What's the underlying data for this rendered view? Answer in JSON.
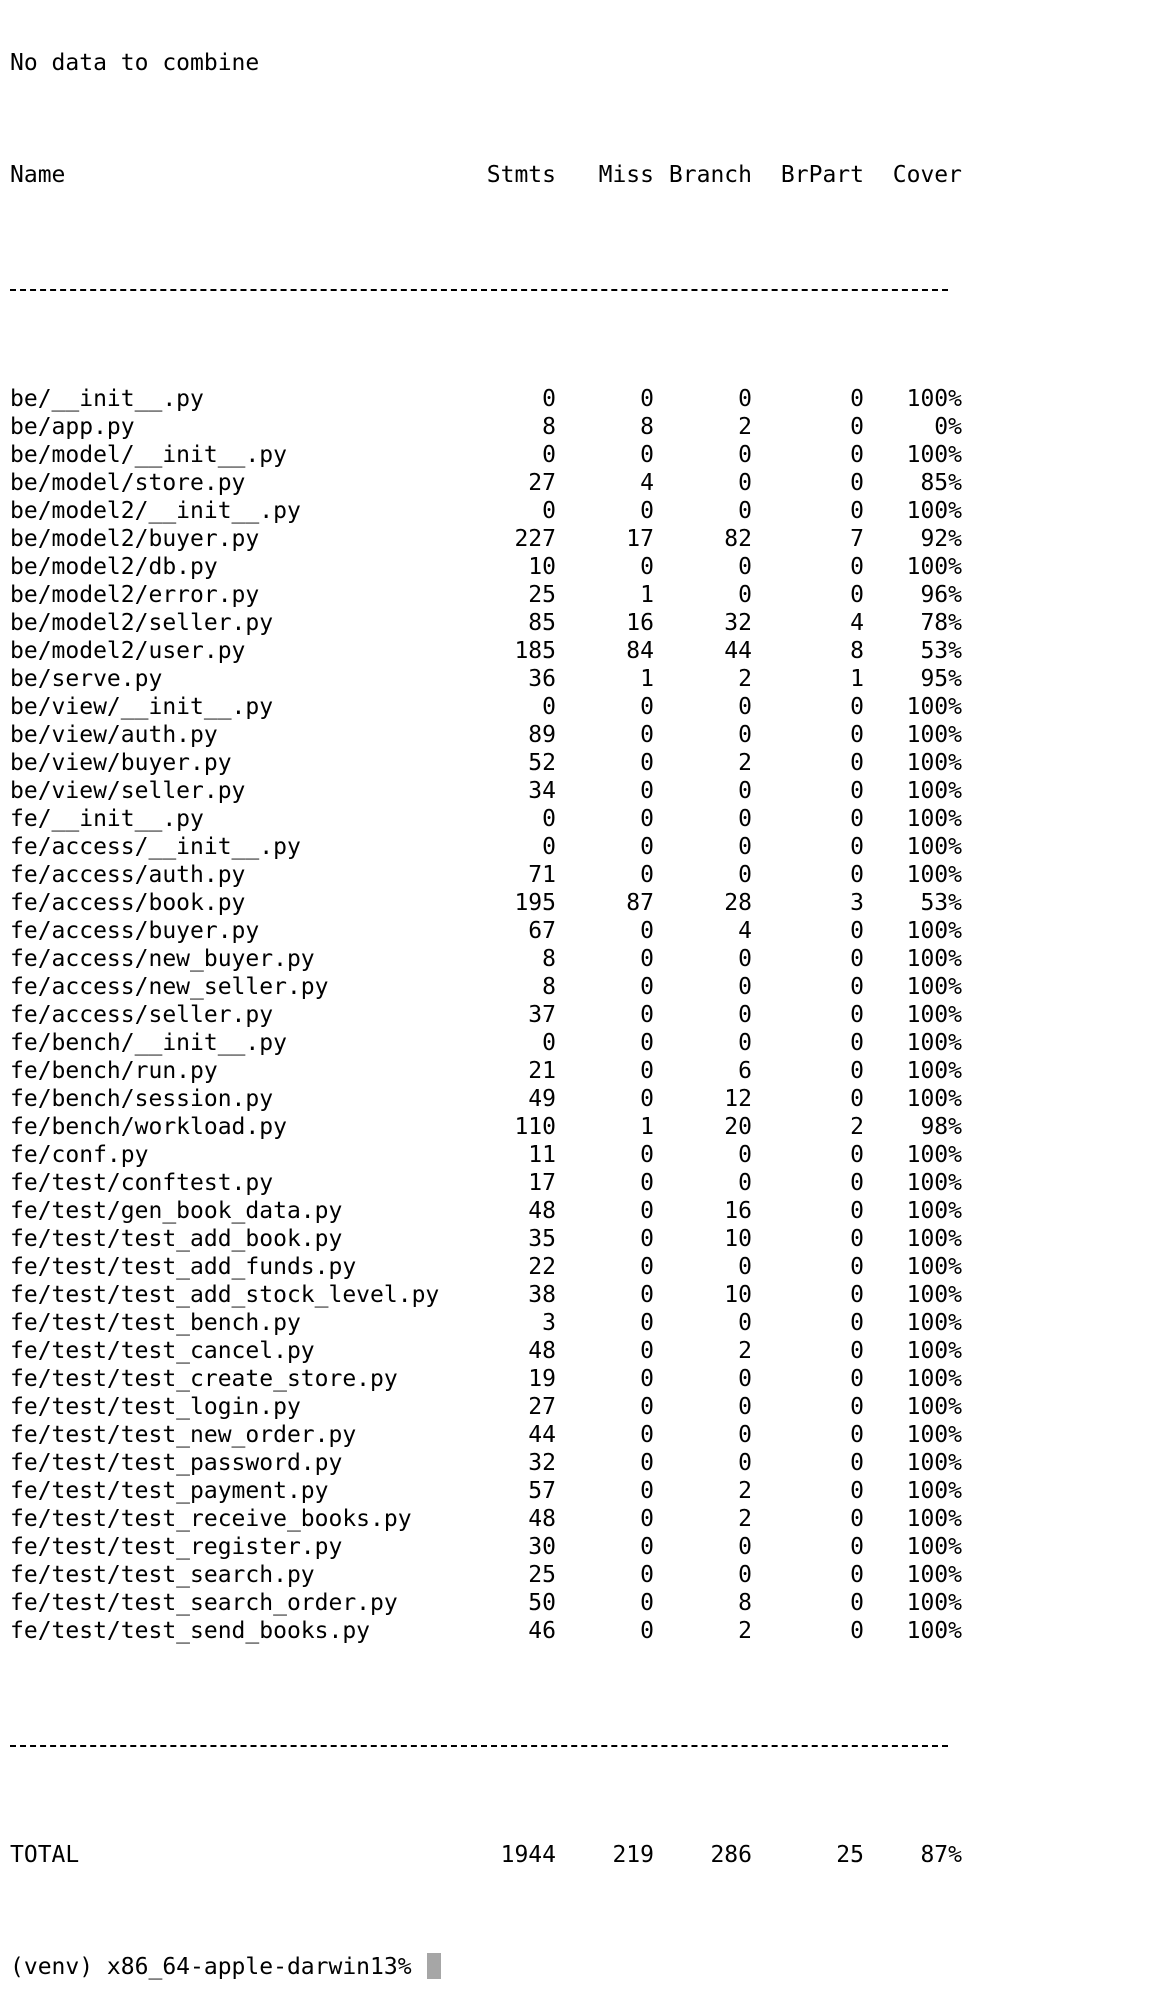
{
  "preamble": "No data to combine",
  "header": {
    "name": "Name",
    "stmts": "Stmts",
    "miss": "Miss",
    "branch": "Branch",
    "brpart": "BrPart",
    "cover": "Cover"
  },
  "rows": [
    {
      "name": "be/__init__.py",
      "stmts": "0",
      "miss": "0",
      "branch": "0",
      "brpart": "0",
      "cover": "100%"
    },
    {
      "name": "be/app.py",
      "stmts": "8",
      "miss": "8",
      "branch": "2",
      "brpart": "0",
      "cover": "0%"
    },
    {
      "name": "be/model/__init__.py",
      "stmts": "0",
      "miss": "0",
      "branch": "0",
      "brpart": "0",
      "cover": "100%"
    },
    {
      "name": "be/model/store.py",
      "stmts": "27",
      "miss": "4",
      "branch": "0",
      "brpart": "0",
      "cover": "85%"
    },
    {
      "name": "be/model2/__init__.py",
      "stmts": "0",
      "miss": "0",
      "branch": "0",
      "brpart": "0",
      "cover": "100%"
    },
    {
      "name": "be/model2/buyer.py",
      "stmts": "227",
      "miss": "17",
      "branch": "82",
      "brpart": "7",
      "cover": "92%"
    },
    {
      "name": "be/model2/db.py",
      "stmts": "10",
      "miss": "0",
      "branch": "0",
      "brpart": "0",
      "cover": "100%"
    },
    {
      "name": "be/model2/error.py",
      "stmts": "25",
      "miss": "1",
      "branch": "0",
      "brpart": "0",
      "cover": "96%"
    },
    {
      "name": "be/model2/seller.py",
      "stmts": "85",
      "miss": "16",
      "branch": "32",
      "brpart": "4",
      "cover": "78%"
    },
    {
      "name": "be/model2/user.py",
      "stmts": "185",
      "miss": "84",
      "branch": "44",
      "brpart": "8",
      "cover": "53%"
    },
    {
      "name": "be/serve.py",
      "stmts": "36",
      "miss": "1",
      "branch": "2",
      "brpart": "1",
      "cover": "95%"
    },
    {
      "name": "be/view/__init__.py",
      "stmts": "0",
      "miss": "0",
      "branch": "0",
      "brpart": "0",
      "cover": "100%"
    },
    {
      "name": "be/view/auth.py",
      "stmts": "89",
      "miss": "0",
      "branch": "0",
      "brpart": "0",
      "cover": "100%"
    },
    {
      "name": "be/view/buyer.py",
      "stmts": "52",
      "miss": "0",
      "branch": "2",
      "brpart": "0",
      "cover": "100%"
    },
    {
      "name": "be/view/seller.py",
      "stmts": "34",
      "miss": "0",
      "branch": "0",
      "brpart": "0",
      "cover": "100%"
    },
    {
      "name": "fe/__init__.py",
      "stmts": "0",
      "miss": "0",
      "branch": "0",
      "brpart": "0",
      "cover": "100%"
    },
    {
      "name": "fe/access/__init__.py",
      "stmts": "0",
      "miss": "0",
      "branch": "0",
      "brpart": "0",
      "cover": "100%"
    },
    {
      "name": "fe/access/auth.py",
      "stmts": "71",
      "miss": "0",
      "branch": "0",
      "brpart": "0",
      "cover": "100%"
    },
    {
      "name": "fe/access/book.py",
      "stmts": "195",
      "miss": "87",
      "branch": "28",
      "brpart": "3",
      "cover": "53%"
    },
    {
      "name": "fe/access/buyer.py",
      "stmts": "67",
      "miss": "0",
      "branch": "4",
      "brpart": "0",
      "cover": "100%"
    },
    {
      "name": "fe/access/new_buyer.py",
      "stmts": "8",
      "miss": "0",
      "branch": "0",
      "brpart": "0",
      "cover": "100%"
    },
    {
      "name": "fe/access/new_seller.py",
      "stmts": "8",
      "miss": "0",
      "branch": "0",
      "brpart": "0",
      "cover": "100%"
    },
    {
      "name": "fe/access/seller.py",
      "stmts": "37",
      "miss": "0",
      "branch": "0",
      "brpart": "0",
      "cover": "100%"
    },
    {
      "name": "fe/bench/__init__.py",
      "stmts": "0",
      "miss": "0",
      "branch": "0",
      "brpart": "0",
      "cover": "100%"
    },
    {
      "name": "fe/bench/run.py",
      "stmts": "21",
      "miss": "0",
      "branch": "6",
      "brpart": "0",
      "cover": "100%"
    },
    {
      "name": "fe/bench/session.py",
      "stmts": "49",
      "miss": "0",
      "branch": "12",
      "brpart": "0",
      "cover": "100%"
    },
    {
      "name": "fe/bench/workload.py",
      "stmts": "110",
      "miss": "1",
      "branch": "20",
      "brpart": "2",
      "cover": "98%"
    },
    {
      "name": "fe/conf.py",
      "stmts": "11",
      "miss": "0",
      "branch": "0",
      "brpart": "0",
      "cover": "100%"
    },
    {
      "name": "fe/test/conftest.py",
      "stmts": "17",
      "miss": "0",
      "branch": "0",
      "brpart": "0",
      "cover": "100%"
    },
    {
      "name": "fe/test/gen_book_data.py",
      "stmts": "48",
      "miss": "0",
      "branch": "16",
      "brpart": "0",
      "cover": "100%"
    },
    {
      "name": "fe/test/test_add_book.py",
      "stmts": "35",
      "miss": "0",
      "branch": "10",
      "brpart": "0",
      "cover": "100%"
    },
    {
      "name": "fe/test/test_add_funds.py",
      "stmts": "22",
      "miss": "0",
      "branch": "0",
      "brpart": "0",
      "cover": "100%"
    },
    {
      "name": "fe/test/test_add_stock_level.py",
      "stmts": "38",
      "miss": "0",
      "branch": "10",
      "brpart": "0",
      "cover": "100%"
    },
    {
      "name": "fe/test/test_bench.py",
      "stmts": "3",
      "miss": "0",
      "branch": "0",
      "brpart": "0",
      "cover": "100%"
    },
    {
      "name": "fe/test/test_cancel.py",
      "stmts": "48",
      "miss": "0",
      "branch": "2",
      "brpart": "0",
      "cover": "100%"
    },
    {
      "name": "fe/test/test_create_store.py",
      "stmts": "19",
      "miss": "0",
      "branch": "0",
      "brpart": "0",
      "cover": "100%"
    },
    {
      "name": "fe/test/test_login.py",
      "stmts": "27",
      "miss": "0",
      "branch": "0",
      "brpart": "0",
      "cover": "100%"
    },
    {
      "name": "fe/test/test_new_order.py",
      "stmts": "44",
      "miss": "0",
      "branch": "0",
      "brpart": "0",
      "cover": "100%"
    },
    {
      "name": "fe/test/test_password.py",
      "stmts": "32",
      "miss": "0",
      "branch": "0",
      "brpart": "0",
      "cover": "100%"
    },
    {
      "name": "fe/test/test_payment.py",
      "stmts": "57",
      "miss": "0",
      "branch": "2",
      "brpart": "0",
      "cover": "100%"
    },
    {
      "name": "fe/test/test_receive_books.py",
      "stmts": "48",
      "miss": "0",
      "branch": "2",
      "brpart": "0",
      "cover": "100%"
    },
    {
      "name": "fe/test/test_register.py",
      "stmts": "30",
      "miss": "0",
      "branch": "0",
      "brpart": "0",
      "cover": "100%"
    },
    {
      "name": "fe/test/test_search.py",
      "stmts": "25",
      "miss": "0",
      "branch": "0",
      "brpart": "0",
      "cover": "100%"
    },
    {
      "name": "fe/test/test_search_order.py",
      "stmts": "50",
      "miss": "0",
      "branch": "8",
      "brpart": "0",
      "cover": "100%"
    },
    {
      "name": "fe/test/test_send_books.py",
      "stmts": "46",
      "miss": "0",
      "branch": "2",
      "brpart": "0",
      "cover": "100%"
    }
  ],
  "total": {
    "name": "TOTAL",
    "stmts": "1944",
    "miss": "219",
    "branch": "286",
    "brpart": "25",
    "cover": "87%"
  },
  "prompt": {
    "text": "(venv) x86_64-apple-darwin13% "
  },
  "colors": {
    "background": "#ffffff",
    "text": "#000000",
    "cursor": "#a6a6a6"
  }
}
